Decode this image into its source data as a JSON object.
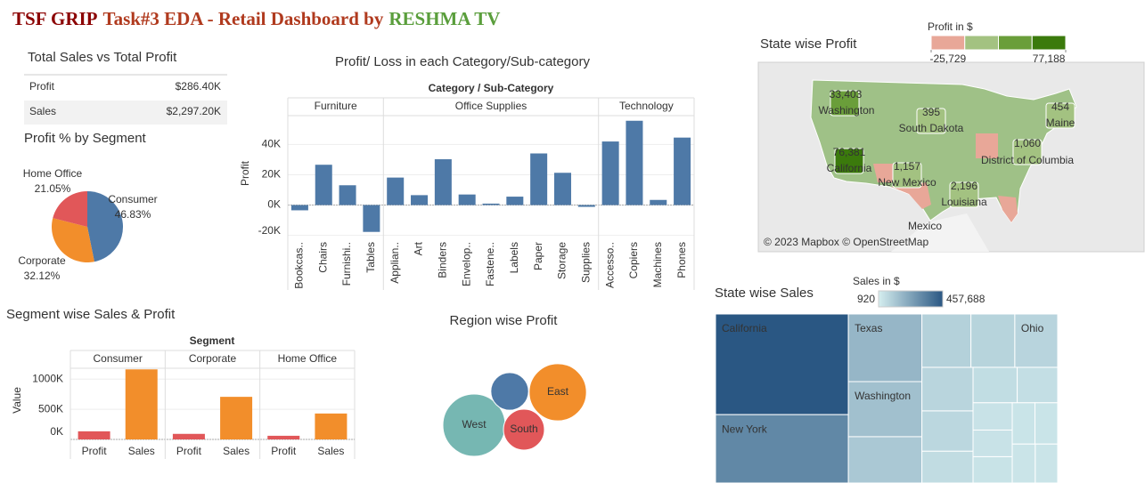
{
  "header": {
    "title": [
      "TSF GRIP",
      "Task#3 EDA - Retail Dashboard by",
      "RESHMA TV"
    ]
  },
  "kpi_table": {
    "title": "Total Sales vs Total Profit",
    "rows": [
      [
        "Profit",
        "$286.40K"
      ],
      [
        "Sales",
        "$2,297.20K"
      ]
    ]
  },
  "chart_data": [
    {
      "type": "pie",
      "title": "Profit % by Segment",
      "categories": [
        "Consumer",
        "Corporate",
        "Home Office"
      ],
      "values": [
        46.83,
        32.12,
        21.05
      ],
      "value_labels": [
        "46.83%",
        "32.12%",
        "21.05%"
      ],
      "colors": [
        "#4e79a7",
        "#f28e2b",
        "#e15759"
      ]
    },
    {
      "type": "bar",
      "title": "Profit/ Loss in each Category/Sub-category",
      "facet_title": "Category / Sub-Category",
      "y_label": "Profit",
      "color": "#4e79a7",
      "facets": [
        {
          "name": "Furniture",
          "categories": [
            "Bookcas..",
            "Chairs",
            "Furnishi..",
            "Tables"
          ],
          "values": [
            -3473,
            26590,
            13059,
            -17725
          ]
        },
        {
          "name": "Office Supplies",
          "categories": [
            "Applian..",
            "Art",
            "Binders",
            "Envelop..",
            "Fastene..",
            "Labels",
            "Paper",
            "Storage",
            "Supplies"
          ],
          "values": [
            18138,
            6528,
            30222,
            6964,
            950,
            5546,
            34054,
            21279,
            -1189
          ]
        },
        {
          "name": "Technology",
          "categories": [
            "Accesso..",
            "Copiers",
            "Machines",
            "Phones"
          ],
          "values": [
            41937,
            55618,
            3385,
            44516
          ]
        }
      ],
      "ylim": [
        -22000,
        59000
      ],
      "yticks": [
        {
          "value": -20000,
          "label": "-20K"
        },
        {
          "value": 0,
          "label": "0K"
        },
        {
          "value": 20000,
          "label": "20K"
        },
        {
          "value": 40000,
          "label": "40K"
        }
      ]
    },
    {
      "type": "bar",
      "title": "Segment wise Sales & Profit",
      "facet_title": "Segment",
      "y_label": "Value",
      "colors": [
        "#e15759",
        "#f28e2b"
      ],
      "facets": [
        {
          "name": "Consumer",
          "categories": [
            "Profit",
            "Sales"
          ],
          "values": [
            134119,
            1161401
          ]
        },
        {
          "name": "Corporate",
          "categories": [
            "Profit",
            "Sales"
          ],
          "values": [
            91979,
            706146
          ]
        },
        {
          "name": "Home Office",
          "categories": [
            "Profit",
            "Sales"
          ],
          "values": [
            60299,
            429653
          ]
        }
      ],
      "ylim": [
        0,
        1180000
      ],
      "yticks": [
        {
          "value": 0,
          "label": "0K"
        },
        {
          "value": 500000,
          "label": "500K"
        },
        {
          "value": 1000000,
          "label": "1000K"
        }
      ]
    },
    {
      "type": "bubble",
      "title": "Region wise Profit",
      "categories": [
        "West",
        "East",
        "South",
        null
      ],
      "values": [
        108418,
        91523,
        46749,
        39706
      ],
      "colors": [
        "#76b7b2",
        "#f28e2b",
        "#e15759",
        "#4e79a7"
      ]
    },
    {
      "type": "map",
      "title": "State wise Profit",
      "colorbar": {
        "title": "Profit in $",
        "colors": [
          "#e8a798",
          "#a3c281",
          "#6a9e3a",
          "#3b7a0c"
        ],
        "lim": [
          -25729,
          77188
        ],
        "ticks": [
          {
            "value": -25729,
            "label": "-25,729"
          },
          {
            "value": 77188,
            "label": "77,188"
          }
        ]
      },
      "categories": [
        "Washington",
        "South Dakota",
        "Maine",
        "District of Columbia",
        "California",
        "New Mexico",
        "Louisiana"
      ],
      "values": [
        33403,
        395,
        454,
        1060,
        76381,
        1157,
        2196
      ],
      "value_labels": [
        "33,403",
        "395",
        "454",
        "1,060",
        "76,381",
        "1,157",
        "2,196"
      ],
      "annotations": [
        "Mexico",
        "© 2023 Mapbox © OpenStreetMap"
      ]
    },
    {
      "type": "treemap",
      "title": "State wise Sales",
      "colorbar": {
        "title": "Sales in $",
        "colors": [
          "#d5eeef",
          "#2a5783"
        ],
        "lim": [
          920,
          457688
        ],
        "ticks": [
          920,
          {
            "value": 457688,
            "label": "457,688"
          }
        ]
      },
      "categories": [
        "California",
        "New York",
        "Texas",
        "Washington",
        null,
        null,
        null,
        "Ohio",
        null,
        null,
        null,
        null,
        null,
        null,
        null,
        null,
        null,
        null,
        null,
        null
      ],
      "values": [
        457688,
        310876,
        170188,
        138641,
        116512,
        89474,
        80166,
        78258,
        76270,
        70637,
        55603,
        53555,
        49096,
        36592,
        35764,
        35282,
        32115,
        32108,
        30662,
        29863
      ]
    }
  ]
}
